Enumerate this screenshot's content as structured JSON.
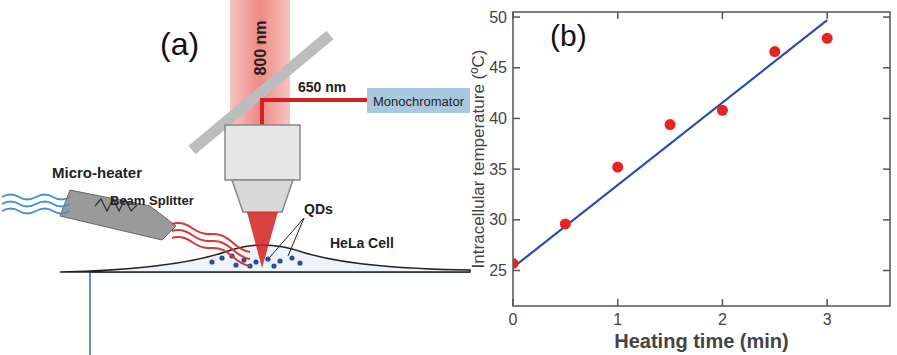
{
  "diagram": {
    "letter": "(a)",
    "beam": "800 nm",
    "splitter": "Beam Splitter",
    "return_beam": "650 nm",
    "detector": "Monochromator",
    "heater": "Micro-heater",
    "probe": "QDs",
    "cell": "HeLa Cell"
  },
  "chart_data": {
    "type": "scatter",
    "title": "(b)",
    "x_label": "Heating time (min)",
    "y_label": "Intracellular temperature (ºC)",
    "series": [
      {
        "type": "scatter",
        "color": "#e8231f",
        "marker": "circle",
        "x": [
          0,
          0.5,
          1,
          1.5,
          2,
          2.5,
          3
        ],
        "values": [
          25.7,
          29.6,
          35.2,
          39.4,
          40.8,
          46.6,
          47.9
        ]
      },
      {
        "type": "line",
        "color": "#2a4fa8",
        "line_style": "solid",
        "x": [
          0,
          3
        ],
        "values": [
          25.3,
          49.7
        ]
      }
    ],
    "xlim": [
      0,
      3.6
    ],
    "ylim": [
      21.5,
      50.5
    ],
    "xticks": [
      0,
      1,
      2,
      3
    ],
    "yticks": [
      25,
      30,
      35,
      40,
      45,
      50
    ],
    "grid": false
  }
}
